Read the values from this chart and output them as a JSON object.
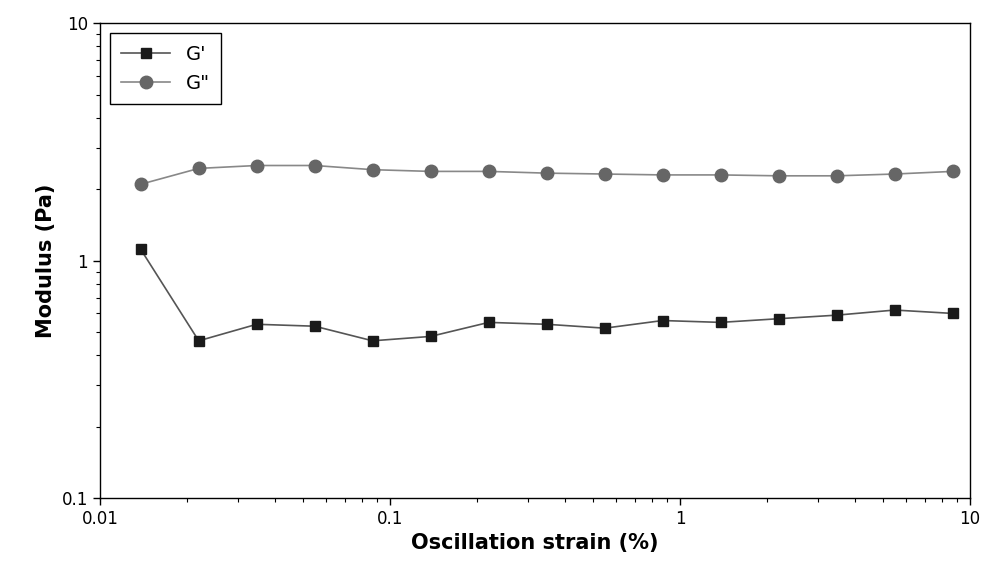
{
  "G_prime_x": [
    0.0138,
    0.0219,
    0.0347,
    0.055,
    0.0871,
    0.138,
    0.219,
    0.347,
    0.55,
    0.871,
    1.38,
    2.19,
    3.47,
    5.5,
    8.71
  ],
  "G_prime_y": [
    1.12,
    0.46,
    0.54,
    0.53,
    0.46,
    0.48,
    0.55,
    0.54,
    0.52,
    0.56,
    0.55,
    0.57,
    0.59,
    0.62,
    0.6
  ],
  "G_double_prime_x": [
    0.0138,
    0.0219,
    0.0347,
    0.055,
    0.0871,
    0.138,
    0.219,
    0.347,
    0.55,
    0.871,
    1.38,
    2.19,
    3.47,
    5.5,
    8.71
  ],
  "G_double_prime_y": [
    2.1,
    2.45,
    2.52,
    2.52,
    2.42,
    2.38,
    2.38,
    2.34,
    2.32,
    2.3,
    2.3,
    2.28,
    2.28,
    2.32,
    2.38
  ],
  "xlabel": "Oscillation strain (%)",
  "ylabel": "Modulus (Pa)",
  "xlim": [
    0.01,
    10
  ],
  "ylim": [
    0.1,
    10
  ],
  "legend_G_prime": "G'",
  "legend_G_double_prime": "G\"",
  "line_color_G_prime": "#555555",
  "line_color_G_double_prime": "#888888",
  "marker_color_G_prime": "#1a1a1a",
  "marker_color_G_double_prime": "#666666",
  "bg_color": "#ffffff",
  "xlabel_fontsize": 15,
  "ylabel_fontsize": 15,
  "tick_fontsize": 12,
  "legend_fontsize": 14,
  "fig_width": 10.0,
  "fig_height": 5.86,
  "dpi": 100
}
